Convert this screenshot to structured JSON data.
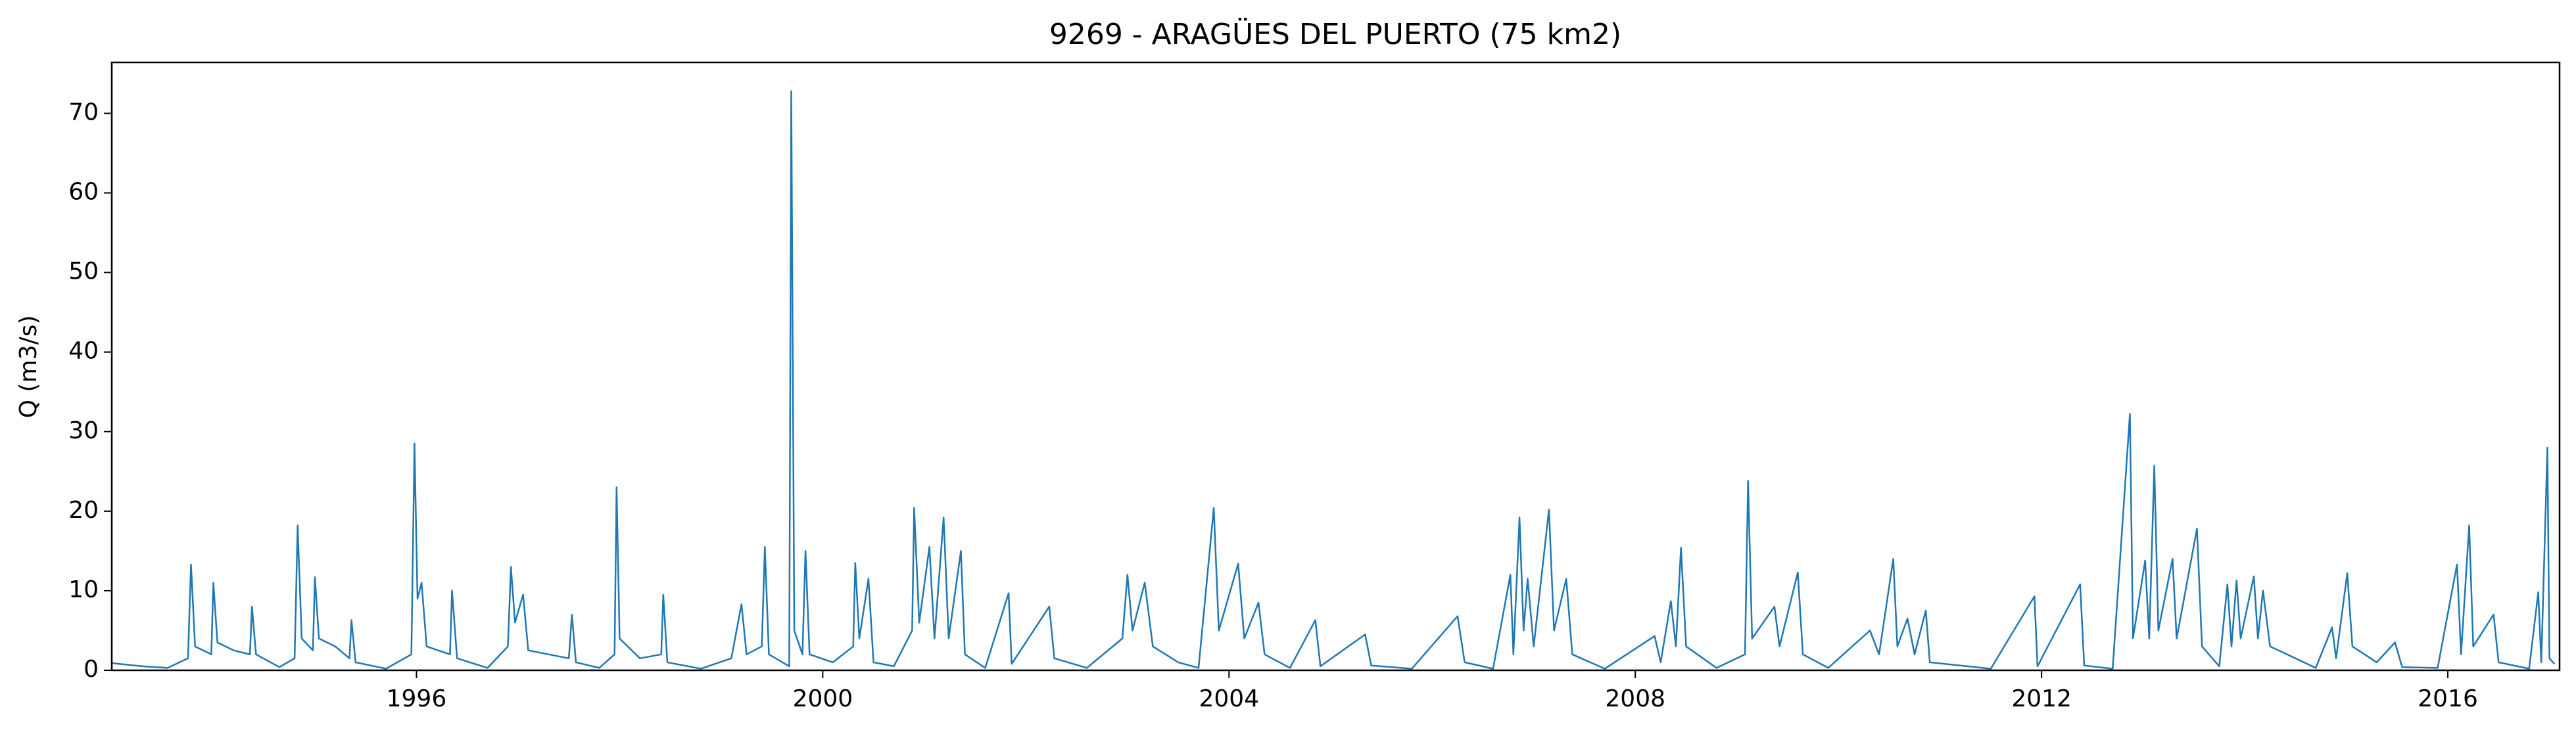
{
  "chart_data": {
    "type": "line",
    "title": "9269 - ARAGÜES DEL PUERTO (75 km2)",
    "y_label": "Q (m3/s)",
    "xlim": [
      1993.0,
      2017.1
    ],
    "xticks": [
      1996,
      2000,
      2004,
      2008,
      2012,
      2016
    ],
    "ylim": [
      0,
      76.4
    ],
    "yticks": [
      0,
      10,
      20,
      30,
      40,
      50,
      60,
      70
    ],
    "grid": false,
    "series": [
      {
        "name": "Q",
        "color": "#1f77b4",
        "x": [
          1993.0,
          1993.3,
          1993.55,
          1993.75,
          1993.78,
          1993.82,
          1993.98,
          1994.0,
          1994.04,
          1994.2,
          1994.36,
          1994.38,
          1994.42,
          1994.65,
          1994.8,
          1994.83,
          1994.87,
          1994.98,
          1995.0,
          1995.04,
          1995.2,
          1995.34,
          1995.36,
          1995.4,
          1995.7,
          1995.95,
          1995.98,
          1996.01,
          1996.05,
          1996.1,
          1996.33,
          1996.35,
          1996.4,
          1996.7,
          1996.9,
          1996.93,
          1996.97,
          1997.05,
          1997.1,
          1997.5,
          1997.53,
          1997.57,
          1997.8,
          1997.95,
          1997.97,
          1998.0,
          1998.2,
          1998.41,
          1998.43,
          1998.47,
          1998.8,
          1999.1,
          1999.2,
          1999.25,
          1999.4,
          1999.43,
          1999.47,
          1999.67,
          1999.69,
          1999.72,
          1999.8,
          1999.83,
          1999.87,
          2000.1,
          2000.3,
          2000.32,
          2000.36,
          2000.45,
          2000.5,
          2000.7,
          2000.88,
          2000.9,
          2000.95,
          2001.05,
          2001.1,
          2001.19,
          2001.24,
          2001.36,
          2001.4,
          2001.6,
          2001.83,
          2001.86,
          2002.23,
          2002.28,
          2002.6,
          2002.95,
          2003.0,
          2003.05,
          2003.17,
          2003.25,
          2003.5,
          2003.7,
          2003.85,
          2003.9,
          2004.09,
          2004.15,
          2004.29,
          2004.35,
          2004.6,
          2004.85,
          2004.9,
          2005.34,
          2005.4,
          2005.8,
          2006.25,
          2006.32,
          2006.6,
          2006.77,
          2006.8,
          2006.86,
          2006.9,
          2006.94,
          2007.0,
          2007.15,
          2007.2,
          2007.32,
          2007.38,
          2007.7,
          2008.19,
          2008.25,
          2008.35,
          2008.4,
          2008.45,
          2008.5,
          2008.8,
          2009.08,
          2009.11,
          2009.15,
          2009.37,
          2009.42,
          2009.6,
          2009.65,
          2009.9,
          2010.31,
          2010.4,
          2010.54,
          2010.58,
          2010.68,
          2010.75,
          2010.86,
          2010.9,
          2011.5,
          2011.93,
          2011.96,
          2012.38,
          2012.42,
          2012.7,
          2012.87,
          2012.9,
          2013.02,
          2013.06,
          2013.11,
          2013.15,
          2013.29,
          2013.33,
          2013.53,
          2013.58,
          2013.75,
          2013.83,
          2013.87,
          2013.92,
          2013.96,
          2014.09,
          2014.13,
          2014.18,
          2014.25,
          2014.5,
          2014.7,
          2014.86,
          2014.9,
          2015.01,
          2015.06,
          2015.3,
          2015.48,
          2015.55,
          2015.9,
          2016.09,
          2016.13,
          2016.21,
          2016.25,
          2016.45,
          2016.5,
          2016.8,
          2016.89,
          2016.92,
          2016.98,
          2017.0,
          2017.05
        ],
        "values": [
          0.9,
          0.5,
          0.3,
          1.5,
          13.3,
          3,
          2,
          11,
          3.5,
          2.5,
          2,
          8,
          2,
          0.4,
          1.5,
          18.2,
          4,
          2.5,
          11.7,
          4,
          3,
          1.5,
          6.3,
          1,
          0.2,
          2,
          28.5,
          9,
          11,
          3,
          2,
          10,
          1.5,
          0.3,
          3,
          13,
          6,
          9.5,
          2.5,
          1.5,
          7,
          1,
          0.3,
          2,
          23,
          4,
          1.5,
          2,
          9.5,
          1,
          0.2,
          1.5,
          8.3,
          2,
          3,
          15.5,
          2,
          0.5,
          72.8,
          5,
          2,
          15,
          2,
          1,
          3,
          13.5,
          4,
          11.5,
          1,
          0.5,
          5,
          20.4,
          6,
          15.5,
          4,
          19.2,
          4,
          15,
          2,
          0.3,
          9.7,
          0.8,
          8,
          1.5,
          0.3,
          4,
          12,
          5,
          11,
          3,
          1,
          0.3,
          20.4,
          5,
          13.4,
          4,
          8.5,
          2,
          0.3,
          6.3,
          0.5,
          4.5,
          0.6,
          0.2,
          6.8,
          1,
          0.2,
          12,
          2,
          19.2,
          5,
          11.5,
          3,
          20.2,
          5,
          11.5,
          2,
          0.2,
          4.3,
          1,
          8.7,
          3,
          15.4,
          3,
          0.3,
          2,
          23.8,
          4,
          8,
          3,
          12.3,
          2,
          0.3,
          5,
          2,
          14,
          3,
          6.5,
          2,
          7.5,
          1,
          0.2,
          9.3,
          0.5,
          10.8,
          0.6,
          0.2,
          32.2,
          4,
          13.8,
          4,
          25.7,
          5,
          14,
          4,
          17.8,
          3,
          0.5,
          10.8,
          3,
          11.3,
          4,
          11.8,
          4,
          10,
          3,
          1.5,
          0.3,
          5.4,
          1.5,
          12.2,
          3,
          1,
          3.5,
          0.4,
          0.3,
          13.3,
          2,
          18.2,
          3,
          7,
          1,
          0.2,
          9.8,
          1,
          28,
          1.5,
          0.8
        ]
      }
    ]
  }
}
